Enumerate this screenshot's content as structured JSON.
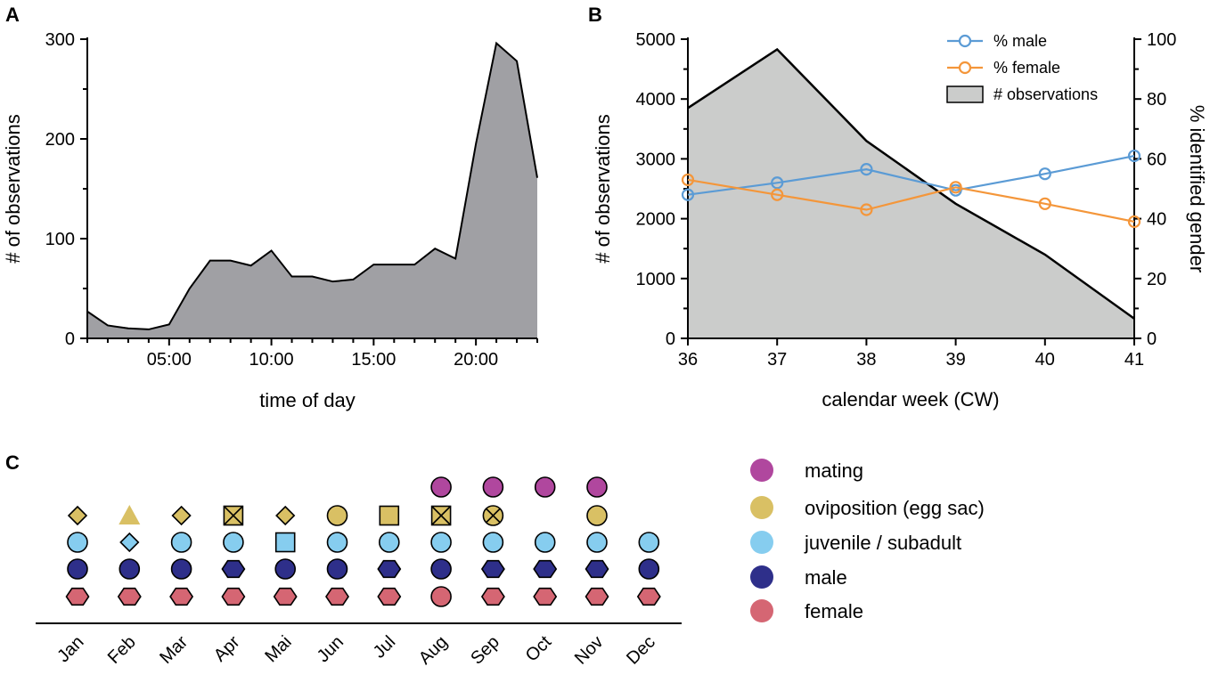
{
  "chart_data": [
    {
      "panel": "A",
      "type": "area",
      "title": "",
      "xlabel": "time of day",
      "ylabel": "# of observations",
      "x_hours": [
        1,
        2,
        3,
        4,
        5,
        6,
        7,
        8,
        9,
        10,
        11,
        12,
        13,
        14,
        15,
        16,
        17,
        18,
        19,
        20,
        21,
        22,
        23
      ],
      "values": [
        27,
        13,
        10,
        9,
        14,
        50,
        78,
        78,
        73,
        88,
        62,
        62,
        57,
        59,
        74,
        74,
        74,
        90,
        80,
        195,
        296,
        278,
        161
      ],
      "xlim": [
        1,
        23
      ],
      "ylim": [
        0,
        300
      ],
      "xticks": [
        {
          "v": 5,
          "label": "05:00"
        },
        {
          "v": 10,
          "label": "10:00"
        },
        {
          "v": 15,
          "label": "15:00"
        },
        {
          "v": 20,
          "label": "20:00"
        }
      ],
      "yticks": [
        {
          "v": 0,
          "label": "0"
        },
        {
          "v": 100,
          "label": "100"
        },
        {
          "v": 200,
          "label": "200"
        },
        {
          "v": 300,
          "label": "300"
        }
      ],
      "fill_color": "#a0a0a4"
    },
    {
      "panel": "B",
      "type": "area",
      "title": "",
      "xlabel": "calendar week (CW)",
      "ylabel_left": "# of observations",
      "ylabel_right": "% identified gender",
      "x": [
        36,
        37,
        38,
        39,
        40,
        41
      ],
      "xlim": [
        36,
        41
      ],
      "ylim_left": [
        0,
        5000
      ],
      "ylim_right": [
        0,
        100
      ],
      "xticks": [
        "36",
        "37",
        "38",
        "39",
        "40",
        "41"
      ],
      "yticks_left": [
        {
          "v": 0,
          "label": "0"
        },
        {
          "v": 1000,
          "label": "1000"
        },
        {
          "v": 2000,
          "label": "2000"
        },
        {
          "v": 3000,
          "label": "3000"
        },
        {
          "v": 4000,
          "label": "4000"
        },
        {
          "v": 5000,
          "label": "5000"
        }
      ],
      "yticks_right": [
        {
          "v": 0,
          "label": "0"
        },
        {
          "v": 20,
          "label": "20"
        },
        {
          "v": 40,
          "label": "40"
        },
        {
          "v": 60,
          "label": "60"
        },
        {
          "v": 80,
          "label": "80"
        },
        {
          "v": 100,
          "label": "100"
        }
      ],
      "observations": [
        3850,
        4830,
        3300,
        2250,
        1400,
        330
      ],
      "series": [
        {
          "name": "% male",
          "values": [
            48,
            52,
            56.5,
            49.5,
            55,
            61
          ],
          "color": "#5b9bd5"
        },
        {
          "name": "% female",
          "values": [
            53,
            48,
            43,
            50.5,
            45,
            39
          ],
          "color": "#f4963a"
        }
      ],
      "legend": [
        "% male",
        "% female",
        "# observations"
      ],
      "legend_position": "top-right",
      "area_color": "#cbcccb"
    },
    {
      "panel": "C",
      "type": "scatter",
      "title": "",
      "months": [
        "Jan",
        "Feb",
        "Mar",
        "Apr",
        "Mai",
        "Jun",
        "Jul",
        "Aug",
        "Sep",
        "Oct",
        "Nov",
        "Dec"
      ],
      "categories": [
        {
          "key": "mating",
          "label": "mating",
          "color": "#b0479e"
        },
        {
          "key": "oviposition",
          "label": "oviposition (egg sac)",
          "color": "#d9c064"
        },
        {
          "key": "juvenile",
          "label": "juvenile / subadult",
          "color": "#86cdef"
        },
        {
          "key": "male",
          "label": "male",
          "color": "#2e2f8a"
        },
        {
          "key": "female",
          "label": "female",
          "color": "#d56673"
        }
      ],
      "marks": {
        "mating": [
          "",
          "",
          "",
          "",
          "",
          "",
          "",
          "circle",
          "circle",
          "circle",
          "circle",
          ""
        ],
        "oviposition": [
          "diamond",
          "triangle",
          "diamond",
          "xsquare",
          "diamond",
          "circle",
          "square",
          "xsquare",
          "xcircle",
          "",
          "circle",
          ""
        ],
        "juvenile": [
          "circle",
          "diamond",
          "circle",
          "circle",
          "square",
          "circle",
          "circle",
          "circle",
          "circle",
          "circle",
          "circle",
          "circle"
        ],
        "male": [
          "circle",
          "circle",
          "circle",
          "hexagon",
          "circle",
          "circle",
          "hexagon",
          "circle",
          "hexagon",
          "hexagon",
          "hexagon",
          "circle"
        ],
        "female": [
          "hexagon",
          "hexagon",
          "hexagon",
          "hexagon",
          "hexagon",
          "hexagon",
          "hexagon",
          "circle",
          "hexagon",
          "hexagon",
          "hexagon",
          "hexagon"
        ]
      }
    }
  ]
}
